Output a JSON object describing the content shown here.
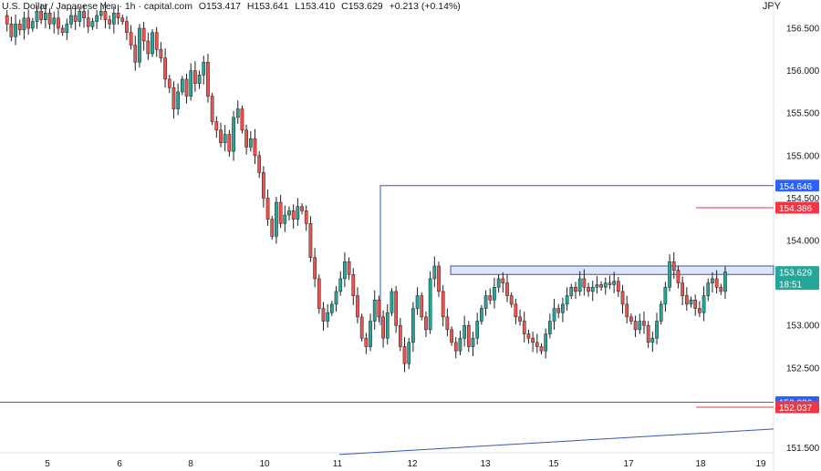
{
  "header": {
    "symbol": "U.S. Dollar / Japanese Yen · 1h · capital.com",
    "open": "O153.417",
    "high": "H153.641",
    "low": "L153.410",
    "close": "C153.629",
    "change": "+0.213 (+0.14%)",
    "currency": "JPY"
  },
  "colors": {
    "up": "#26a69a",
    "down": "#ef5350",
    "line_blue": "#2962ff",
    "line_red": "#f23645",
    "zone_fill": "#dbe6fb",
    "zone_stroke": "#3b57a8"
  },
  "chart_data": {
    "type": "candlestick",
    "x_ticks": [
      "5",
      "6",
      "8",
      "10",
      "11",
      "12",
      "13",
      "15",
      "17",
      "18",
      "19"
    ],
    "y_ticks": [
      "156.500",
      "156.000",
      "155.500",
      "155.000",
      "154.500",
      "154.000",
      "153.500",
      "153.000",
      "152.500",
      "151.500"
    ],
    "ylim": [
      151.45,
      156.75
    ],
    "price_labels": [
      {
        "value": "154.646",
        "color": "#2962ff"
      },
      {
        "value": "154.386",
        "color": "#f23645"
      },
      {
        "value": "153.629",
        "color": "#26a69a",
        "sub": "18:51"
      },
      {
        "value": "152.096",
        "color": "#2962ff"
      },
      {
        "value": "152.037",
        "color": "#f23645"
      }
    ],
    "levels": {
      "high_marker": 154.646,
      "red_upper": 154.386,
      "zone_top": 153.7,
      "zone_bottom": 153.6,
      "support": 152.096,
      "red_lower": 152.037
    },
    "trendline": [
      151.48,
      151.78
    ],
    "series_path": [
      156.65,
      156.55,
      156.4,
      156.55,
      156.48,
      156.62,
      156.5,
      156.58,
      156.7,
      156.6,
      156.68,
      156.55,
      156.62,
      156.5,
      156.45,
      156.55,
      156.65,
      156.58,
      156.7,
      156.62,
      156.52,
      156.58,
      156.65,
      156.7,
      156.6,
      156.55,
      156.68,
      156.62,
      156.58,
      156.45,
      156.3,
      156.1,
      156.5,
      156.35,
      156.2,
      156.45,
      156.25,
      156.15,
      155.9,
      155.8,
      155.55,
      155.75,
      155.9,
      155.7,
      156.0,
      155.85,
      155.95,
      156.1,
      155.7,
      155.4,
      155.3,
      155.15,
      155.25,
      155.05,
      155.45,
      155.55,
      155.3,
      155.1,
      155.2,
      155.0,
      154.8,
      154.5,
      154.25,
      154.05,
      154.45,
      154.2,
      154.3,
      154.35,
      154.25,
      154.4,
      154.35,
      154.2,
      153.8,
      153.55,
      153.2,
      153.05,
      153.15,
      153.25,
      153.4,
      153.55,
      153.75,
      153.6,
      153.35,
      153.1,
      152.85,
      152.75,
      153.05,
      153.3,
      153.1,
      152.85,
      153.15,
      153.4,
      153.0,
      152.75,
      152.55,
      152.8,
      153.2,
      153.35,
      153.1,
      152.95,
      153.55,
      153.7,
      153.4,
      153.1,
      152.95,
      152.8,
      152.7,
      152.85,
      153.0,
      152.75,
      152.85,
      153.05,
      153.2,
      153.35,
      153.3,
      153.45,
      153.55,
      153.5,
      153.35,
      153.25,
      153.1,
      153.05,
      152.9,
      152.85,
      152.8,
      152.75,
      152.7,
      152.9,
      153.05,
      153.2,
      153.15,
      153.25,
      153.35,
      153.45,
      153.4,
      153.55,
      153.45,
      153.4,
      153.45,
      153.48,
      153.45,
      153.5,
      153.48,
      153.52,
      153.4,
      153.25,
      153.1,
      153.05,
      152.95,
      153.05,
      153.0,
      152.8,
      152.85,
      153.05,
      153.25,
      153.45,
      153.75,
      153.65,
      153.5,
      153.35,
      153.25,
      153.3,
      153.2,
      153.15,
      153.35,
      153.5,
      153.55,
      153.45,
      153.4,
      153.63
    ]
  }
}
